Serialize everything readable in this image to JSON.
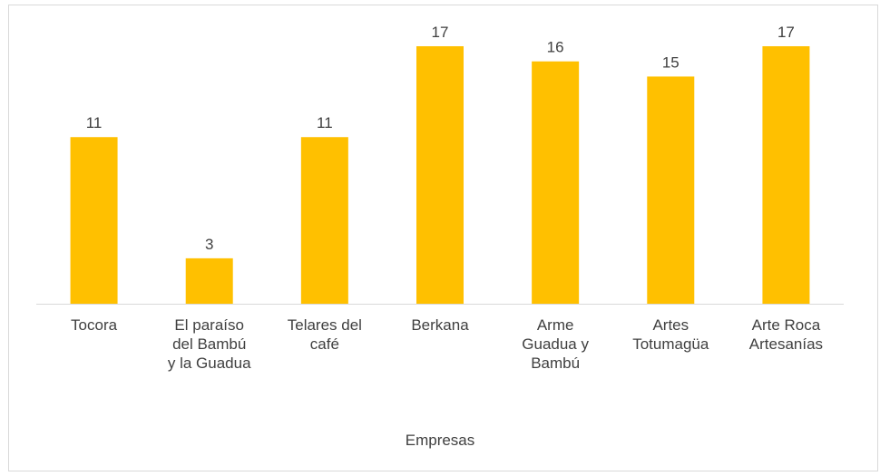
{
  "chart_data": {
    "type": "bar",
    "x_label": "Empresas",
    "categories": [
      "Tocora",
      "El paraíso del Bambú y la Guadua",
      "Telares del café",
      "Berkana",
      "Arme Guadua y Bambú",
      "Artes Totumagüa",
      "Arte Roca Artesanías"
    ],
    "values": [
      11,
      3,
      11,
      17,
      16,
      15,
      17
    ],
    "color": "#ffc000",
    "ylim": [
      0,
      17
    ]
  }
}
